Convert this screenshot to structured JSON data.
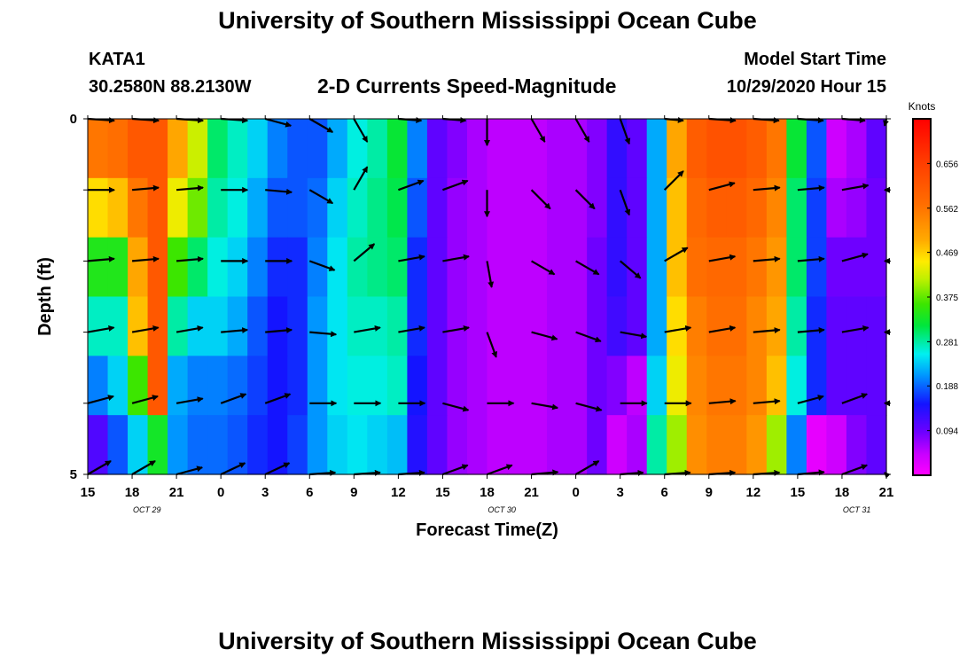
{
  "header": {
    "title": "University of Southern Mississippi Ocean Cube",
    "station": "KATA1",
    "coords": "30.2580N 88.2130W",
    "subtitle": "2-D Currents Speed-Magnitude",
    "model_start_label": "Model Start Time",
    "model_start_value": "10/29/2020 Hour 15"
  },
  "footer": {
    "title": "University of Southern Mississippi Ocean Cube"
  },
  "chart_data": {
    "type": "heatmap",
    "title": "2-D Currents Speed-Magnitude",
    "xlabel": "Forecast Time(Z)",
    "ylabel": "Depth (ft)",
    "x_tick_labels": [
      "15",
      "18",
      "21",
      "0",
      "3",
      "6",
      "9",
      "12",
      "15",
      "18",
      "21",
      "0",
      "3",
      "6",
      "9",
      "12",
      "15",
      "18",
      "21"
    ],
    "date_labels": [
      {
        "text": "OCT  29",
        "hour_index": 4
      },
      {
        "text": "OCT  30",
        "hour_index": 28
      },
      {
        "text": "OCT  31",
        "hour_index": 52
      }
    ],
    "y_tick_labels": [
      "0",
      "5"
    ],
    "ylim": [
      0,
      5
    ],
    "x_range_hours": [
      0,
      54
    ],
    "colorbar": {
      "unit": "Knots",
      "min": 0.0,
      "max": 0.75,
      "tick_values": [
        0.656,
        0.562,
        0.469,
        0.375,
        0.281,
        0.188,
        0.094
      ]
    },
    "depth_rows": [
      0,
      1,
      2,
      3,
      4,
      5
    ],
    "speed_grid_knots": [
      [
        0.56,
        0.57,
        0.61,
        0.61,
        0.5,
        0.42,
        0.3,
        0.27,
        0.24,
        0.2,
        0.18,
        0.18,
        0.22,
        0.26,
        0.28,
        0.32,
        0.2,
        0.1,
        0.08,
        0.06,
        0.05,
        0.05,
        0.05,
        0.06,
        0.06,
        0.08,
        0.13,
        0.1,
        0.22,
        0.5,
        0.6,
        0.62,
        0.62,
        0.6,
        0.56,
        0.32,
        0.18,
        0.04,
        0.06,
        0.1
      ],
      [
        0.46,
        0.48,
        0.56,
        0.61,
        0.44,
        0.38,
        0.28,
        0.26,
        0.22,
        0.18,
        0.18,
        0.19,
        0.24,
        0.27,
        0.29,
        0.31,
        0.18,
        0.1,
        0.07,
        0.06,
        0.05,
        0.05,
        0.05,
        0.06,
        0.06,
        0.08,
        0.13,
        0.1,
        0.22,
        0.48,
        0.58,
        0.6,
        0.6,
        0.58,
        0.54,
        0.3,
        0.17,
        0.06,
        0.07,
        0.09
      ],
      [
        0.34,
        0.34,
        0.5,
        0.61,
        0.36,
        0.3,
        0.26,
        0.24,
        0.2,
        0.16,
        0.16,
        0.2,
        0.25,
        0.28,
        0.29,
        0.3,
        0.16,
        0.1,
        0.07,
        0.06,
        0.05,
        0.05,
        0.05,
        0.06,
        0.06,
        0.09,
        0.13,
        0.1,
        0.22,
        0.48,
        0.57,
        0.58,
        0.58,
        0.56,
        0.52,
        0.3,
        0.17,
        0.09,
        0.09,
        0.09
      ],
      [
        0.27,
        0.27,
        0.48,
        0.61,
        0.28,
        0.24,
        0.24,
        0.22,
        0.18,
        0.15,
        0.16,
        0.21,
        0.25,
        0.27,
        0.27,
        0.28,
        0.16,
        0.1,
        0.07,
        0.06,
        0.05,
        0.05,
        0.05,
        0.06,
        0.06,
        0.09,
        0.12,
        0.1,
        0.22,
        0.46,
        0.55,
        0.57,
        0.57,
        0.54,
        0.5,
        0.28,
        0.16,
        0.1,
        0.1,
        0.1
      ],
      [
        0.2,
        0.24,
        0.36,
        0.61,
        0.22,
        0.2,
        0.2,
        0.19,
        0.17,
        0.15,
        0.16,
        0.21,
        0.25,
        0.26,
        0.26,
        0.27,
        0.15,
        0.1,
        0.07,
        0.06,
        0.05,
        0.05,
        0.05,
        0.06,
        0.06,
        0.09,
        0.08,
        0.05,
        0.24,
        0.44,
        0.54,
        0.56,
        0.56,
        0.54,
        0.48,
        0.26,
        0.16,
        0.1,
        0.1,
        0.1
      ],
      [
        0.11,
        0.18,
        0.24,
        0.33,
        0.21,
        0.19,
        0.19,
        0.18,
        0.16,
        0.15,
        0.17,
        0.21,
        0.24,
        0.25,
        0.24,
        0.23,
        0.14,
        0.1,
        0.07,
        0.06,
        0.05,
        0.05,
        0.05,
        0.06,
        0.06,
        0.09,
        0.04,
        0.06,
        0.28,
        0.4,
        0.53,
        0.55,
        0.55,
        0.52,
        0.4,
        0.2,
        0.02,
        0.04,
        0.08,
        0.1
      ]
    ],
    "vector_hours": [
      0,
      3,
      6,
      9,
      12,
      15,
      18,
      21,
      24,
      27,
      30,
      33,
      36,
      39,
      42,
      45,
      48,
      51,
      54
    ],
    "vectors_deg_ccw_from_east": [
      [
        0,
        0,
        0,
        0,
        -15,
        -30,
        -60,
        30,
        30,
        -90,
        -60,
        -60,
        -70,
        45,
        0,
        15,
        15,
        30,
        -15
      ],
      [
        0,
        5,
        5,
        0,
        -5,
        -30,
        60,
        20,
        20,
        -90,
        -45,
        -45,
        -70,
        45,
        15,
        5,
        5,
        10,
        0
      ],
      [
        5,
        5,
        5,
        0,
        0,
        -20,
        40,
        10,
        10,
        -80,
        -30,
        -30,
        -40,
        30,
        10,
        5,
        5,
        15,
        0
      ],
      [
        10,
        10,
        10,
        5,
        5,
        -5,
        10,
        10,
        10,
        -70,
        -15,
        -20,
        -10,
        10,
        10,
        5,
        5,
        10,
        0
      ],
      [
        15,
        15,
        10,
        20,
        20,
        0,
        0,
        0,
        -15,
        0,
        -10,
        -15,
        0,
        0,
        5,
        5,
        15,
        20,
        0
      ],
      [
        30,
        30,
        15,
        25,
        25,
        -15,
        -10,
        -10,
        20,
        20,
        5,
        30,
        -30,
        -15,
        -10,
        -10,
        5,
        20,
        0
      ]
    ]
  }
}
